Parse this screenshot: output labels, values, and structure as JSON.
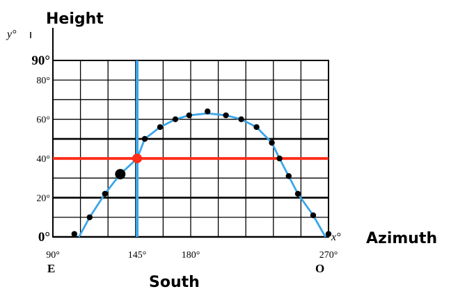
{
  "chart_data": {
    "type": "scatter",
    "y_axis_title": "Height",
    "x_axis_title": "Azimuth",
    "y_axis_symbol": "y°",
    "x_axis_symbol": "x°",
    "x_range": [
      90,
      270
    ],
    "y_range": [
      0,
      90
    ],
    "x_grid_step": 18,
    "y_grid_step": 10,
    "y_tick_labels": [
      {
        "value": 90,
        "label": "90°"
      },
      {
        "value": 80,
        "label": "80°"
      },
      {
        "value": 60,
        "label": "60°"
      },
      {
        "value": 40,
        "label": "40°"
      },
      {
        "value": 20,
        "label": "20°"
      },
      {
        "value": 0,
        "label": "0°"
      }
    ],
    "x_tick_labels": [
      {
        "value": 90,
        "label": "90°"
      },
      {
        "value": 145,
        "label": "145°"
      },
      {
        "value": 180,
        "label": "180°"
      },
      {
        "value": 270,
        "label": "270°"
      }
    ],
    "direction_labels": {
      "east": "E",
      "south": "South",
      "west": "O"
    },
    "bold_y_lines": [
      50,
      40,
      20,
      0
    ],
    "points": [
      {
        "x": 104,
        "y": 1.5
      },
      {
        "x": 114,
        "y": 10
      },
      {
        "x": 124,
        "y": 22
      },
      {
        "x": 134,
        "y": 32,
        "highlight": true
      },
      {
        "x": 145,
        "y": 40,
        "marker": true
      },
      {
        "x": 150,
        "y": 50
      },
      {
        "x": 160,
        "y": 56
      },
      {
        "x": 170,
        "y": 60
      },
      {
        "x": 179,
        "y": 62
      },
      {
        "x": 191,
        "y": 64
      },
      {
        "x": 203,
        "y": 62
      },
      {
        "x": 213,
        "y": 60
      },
      {
        "x": 223,
        "y": 56
      },
      {
        "x": 233,
        "y": 48
      },
      {
        "x": 238,
        "y": 40
      },
      {
        "x": 244,
        "y": 31
      },
      {
        "x": 250,
        "y": 22
      },
      {
        "x": 260,
        "y": 11
      },
      {
        "x": 270,
        "y": 1.5
      }
    ],
    "curve": [
      [
        107,
        0
      ],
      [
        114,
        10
      ],
      [
        124,
        22
      ],
      [
        134,
        32
      ],
      [
        145,
        40
      ],
      [
        150,
        50
      ],
      [
        160,
        56
      ],
      [
        170,
        60
      ],
      [
        179,
        62
      ],
      [
        191,
        63
      ],
      [
        203,
        62
      ],
      [
        213,
        60
      ],
      [
        223,
        56
      ],
      [
        233,
        48
      ],
      [
        238,
        40
      ],
      [
        244,
        31
      ],
      [
        250,
        22
      ],
      [
        260,
        11
      ],
      [
        268,
        0
      ]
    ],
    "highlight_lines": {
      "vertical_x": 145,
      "horizontal_y": 40
    },
    "colors": {
      "curve": "#3aa6e8",
      "vertical_line": "#3aa6e8",
      "horizontal_line": "#ff2d1a",
      "marker": "#ff2d1a",
      "points": "#000000",
      "grid": "#000000"
    }
  }
}
